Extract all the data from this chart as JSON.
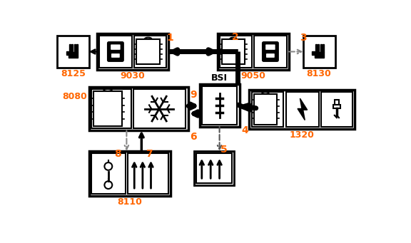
{
  "bg_color": "#ffffff",
  "label_color": "#FF6600",
  "figsize": [
    5.76,
    3.41
  ],
  "dpi": 100
}
